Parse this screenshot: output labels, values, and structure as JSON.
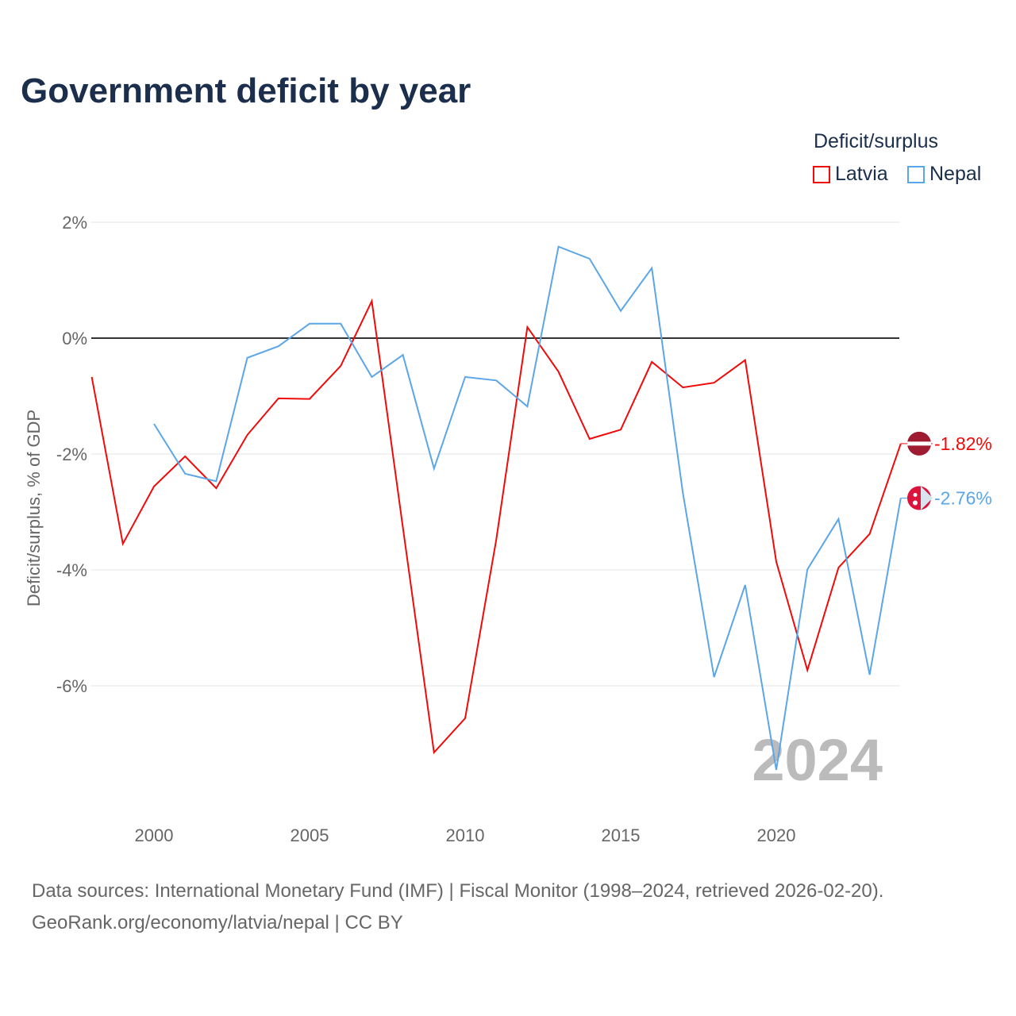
{
  "title": "Government deficit by year",
  "legend_title": "Deficit/surplus",
  "watermark_year": "2024",
  "source_line1": "Data sources: International Monetary Fund (IMF) | Fiscal Monitor (1998–2024, retrieved 2026-02-20).",
  "source_line2": "GeoRank.org/economy/latvia/nepal | CC BY",
  "chart_data": {
    "type": "line",
    "title": "Government deficit by year",
    "xlabel": "",
    "ylabel": "Deficit/surplus, % of GDP",
    "xlim": [
      1998,
      2024
    ],
    "ylim": [
      -8.2,
      2.3
    ],
    "yticks": [
      2,
      0,
      -2,
      -4,
      -6
    ],
    "ytick_labels": [
      "2%",
      "0%",
      "-2%",
      "-4%",
      "-6%"
    ],
    "xticks": [
      2000,
      2005,
      2010,
      2015,
      2020
    ],
    "xtick_labels": [
      "2000",
      "2005",
      "2010",
      "2015",
      "2020"
    ],
    "legend_placement": "top-right",
    "grid": true,
    "series": [
      {
        "name": "Latvia",
        "color": "#f00a0a",
        "end_label": "-1.82%",
        "x": [
          1998,
          1999,
          2000,
          2001,
          2002,
          2003,
          2004,
          2005,
          2006,
          2007,
          2008,
          2009,
          2010,
          2011,
          2012,
          2013,
          2014,
          2015,
          2016,
          2017,
          2018,
          2019,
          2020,
          2021,
          2022,
          2023,
          2024
        ],
        "values": [
          -0.67,
          -3.55,
          -2.56,
          -2.04,
          -2.59,
          -1.67,
          -1.04,
          -1.05,
          -0.48,
          0.64,
          -3.27,
          -7.15,
          -6.56,
          -3.48,
          0.19,
          -0.58,
          -1.74,
          -1.58,
          -0.41,
          -0.85,
          -0.77,
          -0.38,
          -3.86,
          -5.73,
          -3.96,
          -3.38,
          -1.82
        ]
      },
      {
        "name": "Nepal",
        "color": "#5ba6e8",
        "end_label": "-2.76%",
        "x": [
          2000,
          2001,
          2002,
          2003,
          2004,
          2005,
          2006,
          2007,
          2008,
          2009,
          2010,
          2011,
          2012,
          2013,
          2014,
          2015,
          2016,
          2017,
          2018,
          2019,
          2020,
          2021,
          2022,
          2023,
          2024
        ],
        "values": [
          -1.48,
          -2.34,
          -2.47,
          -0.34,
          -0.14,
          0.25,
          0.25,
          -0.67,
          -0.29,
          -2.25,
          -0.67,
          -0.73,
          -1.18,
          1.58,
          1.37,
          0.47,
          1.21,
          -2.68,
          -5.85,
          -4.26,
          -7.45,
          -3.99,
          -3.12,
          -5.81,
          -2.76
        ]
      }
    ]
  }
}
